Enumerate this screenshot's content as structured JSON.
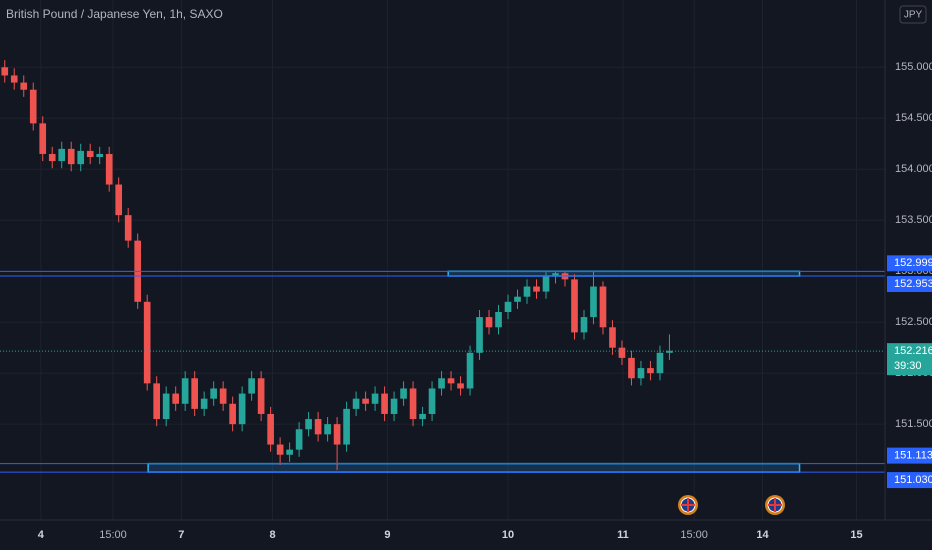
{
  "chart_data": {
    "type": "candlestick",
    "title": "British Pound / Japanese Yen, 1h, SAXO",
    "currency": "JPY",
    "up_color": "#26a69a",
    "down_color": "#ef5350",
    "grid": true,
    "xlim": [
      -0.5,
      92.7
    ],
    "ylim": [
      150.56,
      155.66
    ],
    "yticks": [
      {
        "value": 151.5,
        "label": "151.500"
      },
      {
        "value": 152,
        "label": "152.000"
      },
      {
        "value": 152.5,
        "label": "152.500"
      },
      {
        "value": 153,
        "label": "153.000"
      },
      {
        "value": 153.5,
        "label": "153.500"
      },
      {
        "value": 154,
        "label": "154.000"
      },
      {
        "value": 154.5,
        "label": "154.500"
      },
      {
        "value": 155,
        "label": "155.000"
      }
    ],
    "xticks": [
      {
        "value": 3.8,
        "label": "4"
      },
      {
        "value": 11.4,
        "label": "15:00"
      },
      {
        "value": 18.6,
        "label": "7"
      },
      {
        "value": 28.2,
        "label": "8"
      },
      {
        "value": 40.3,
        "label": "9"
      },
      {
        "value": 53.0,
        "label": "10"
      },
      {
        "value": 65.1,
        "label": "11"
      },
      {
        "value": 72.6,
        "label": "15:00"
      },
      {
        "value": 79.8,
        "label": "14"
      },
      {
        "value": 89.7,
        "label": "15"
      }
    ],
    "open": [
      155.0,
      154.92,
      154.85,
      154.78,
      154.45,
      154.15,
      154.08,
      154.2,
      154.05,
      154.18,
      154.12,
      154.15,
      153.85,
      153.55,
      153.3,
      152.7,
      151.9,
      151.55,
      151.8,
      151.7,
      151.95,
      151.65,
      151.75,
      151.85,
      151.7,
      151.5,
      151.8,
      151.95,
      151.6,
      151.3,
      151.2,
      151.25,
      151.45,
      151.55,
      151.4,
      151.5,
      151.3,
      151.65,
      151.75,
      151.7,
      151.8,
      151.6,
      151.75,
      151.85,
      151.55,
      151.6,
      151.85,
      151.95,
      151.9,
      151.85,
      152.2,
      152.55,
      152.45,
      152.6,
      152.7,
      152.75,
      152.85,
      152.8,
      152.95,
      152.98,
      152.92,
      152.4,
      152.55,
      152.85,
      152.45,
      152.25,
      152.15,
      151.95,
      152.05,
      152.0,
      152.2
    ],
    "high": [
      155.07,
      154.99,
      154.92,
      154.85,
      154.52,
      154.22,
      154.27,
      154.27,
      154.25,
      154.25,
      154.22,
      154.22,
      153.92,
      153.62,
      153.37,
      152.77,
      151.97,
      151.87,
      151.87,
      152.02,
      152.02,
      151.82,
      151.92,
      151.92,
      151.77,
      151.87,
      152.02,
      152.02,
      151.67,
      151.37,
      151.32,
      151.52,
      151.62,
      151.62,
      151.57,
      151.57,
      151.72,
      151.82,
      151.82,
      151.87,
      151.87,
      151.82,
      151.92,
      151.92,
      151.67,
      151.92,
      152.02,
      152.02,
      151.97,
      152.27,
      152.62,
      152.62,
      152.67,
      152.77,
      152.82,
      152.92,
      152.92,
      152.99,
      153.0,
      153.0,
      152.97,
      152.62,
      153.0,
      152.9,
      152.52,
      152.32,
      152.22,
      152.12,
      152.12,
      152.27,
      152.38
    ],
    "low": [
      154.85,
      154.78,
      154.71,
      154.38,
      154.08,
      154.01,
      154.01,
      153.98,
      153.98,
      154.05,
      154.05,
      153.78,
      153.48,
      153.23,
      152.63,
      151.83,
      151.48,
      151.48,
      151.63,
      151.63,
      151.58,
      151.58,
      151.68,
      151.63,
      151.43,
      151.43,
      151.73,
      151.53,
      151.23,
      151.1,
      151.13,
      151.18,
      151.38,
      151.33,
      151.33,
      151.05,
      151.23,
      151.58,
      151.63,
      151.63,
      151.53,
      151.53,
      151.68,
      151.48,
      151.48,
      151.53,
      151.78,
      151.83,
      151.78,
      151.78,
      152.13,
      152.38,
      152.38,
      152.53,
      152.63,
      152.68,
      152.73,
      152.73,
      152.88,
      152.85,
      152.33,
      152.33,
      152.48,
      152.38,
      152.18,
      152.08,
      151.88,
      151.88,
      151.93,
      151.93,
      152.13
    ],
    "close": [
      154.92,
      154.85,
      154.78,
      154.45,
      154.15,
      154.08,
      154.2,
      154.05,
      154.18,
      154.12,
      154.15,
      153.85,
      153.55,
      153.3,
      152.7,
      151.9,
      151.55,
      151.8,
      151.7,
      151.95,
      151.65,
      151.75,
      151.85,
      151.7,
      151.5,
      151.8,
      151.95,
      151.6,
      151.3,
      151.2,
      151.25,
      151.45,
      151.55,
      151.4,
      151.5,
      151.3,
      151.65,
      151.75,
      151.7,
      151.8,
      151.6,
      151.75,
      151.85,
      151.55,
      151.6,
      151.85,
      151.95,
      151.9,
      151.85,
      152.2,
      152.55,
      152.45,
      152.6,
      152.7,
      152.75,
      152.85,
      152.8,
      152.95,
      152.98,
      152.92,
      152.4,
      152.55,
      152.85,
      152.45,
      152.25,
      152.15,
      151.95,
      152.05,
      152.0,
      152.2,
      152.22
    ],
    "price_lines": [
      152.999,
      152.953,
      151.113,
      {
        "value": 151.03,
        "label": "151.030"
      }
    ],
    "zones": [
      {
        "x": [
          46.7,
          83.7
        ],
        "y": [
          152.953,
          152.999
        ]
      },
      {
        "x": [
          15.1,
          83.7
        ],
        "y": [
          151.03,
          151.113
        ]
      }
    ],
    "last_price": 152.216,
    "countdown": "39:30"
  }
}
